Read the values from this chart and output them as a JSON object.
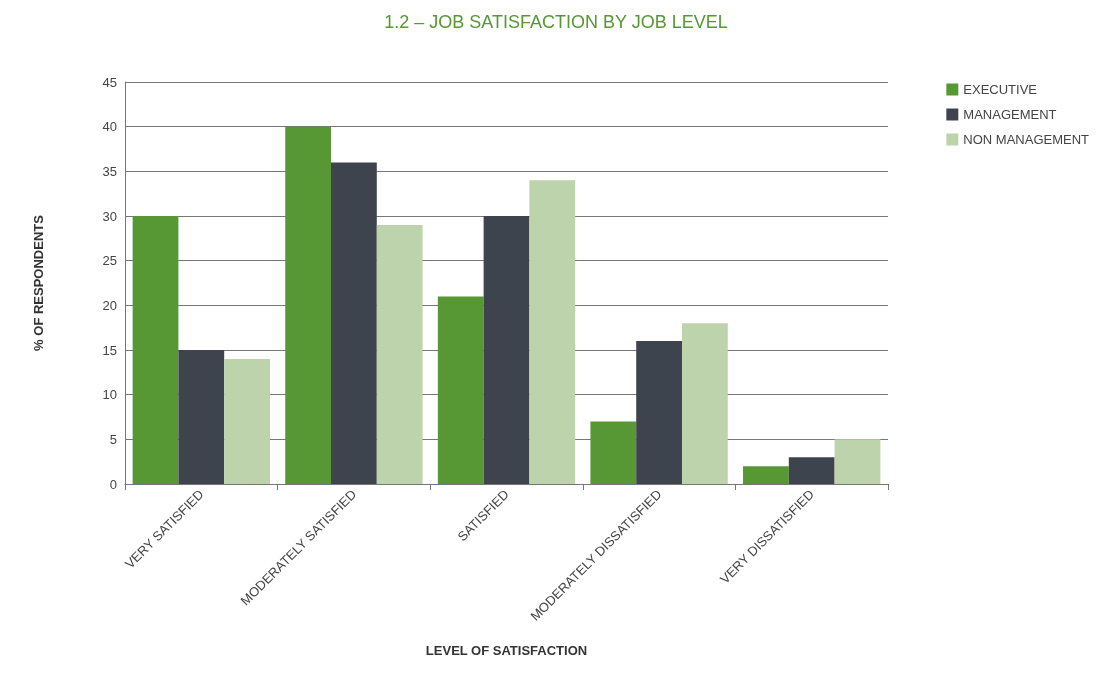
{
  "chart_data": {
    "type": "bar",
    "title": "1.2 – JOB SATISFACTION BY JOB LEVEL",
    "xlabel": "LEVEL OF SATISFACTION",
    "ylabel": "% OF RESPONDENTS",
    "categories": [
      "VERY SATISFIED",
      "MODERATELY SATISFIED",
      "SATISFIED",
      "MODERATELY DISSATISFIED",
      "VERY DISSATISFIED"
    ],
    "series": [
      {
        "name": "EXECUTIVE",
        "color": "#579834",
        "values": [
          30,
          40,
          21,
          7,
          2
        ]
      },
      {
        "name": "MANAGEMENT",
        "color": "#3e444d",
        "values": [
          15,
          36,
          30,
          16,
          3
        ]
      },
      {
        "name": "NON MANAGEMENT",
        "color": "#bcd3ab",
        "values": [
          14,
          29,
          34,
          18,
          5
        ]
      }
    ],
    "ylim": [
      0,
      45
    ],
    "yticks": [
      0,
      5,
      10,
      15,
      20,
      25,
      30,
      35,
      40,
      45
    ],
    "grid": "y",
    "legend": "top right"
  }
}
